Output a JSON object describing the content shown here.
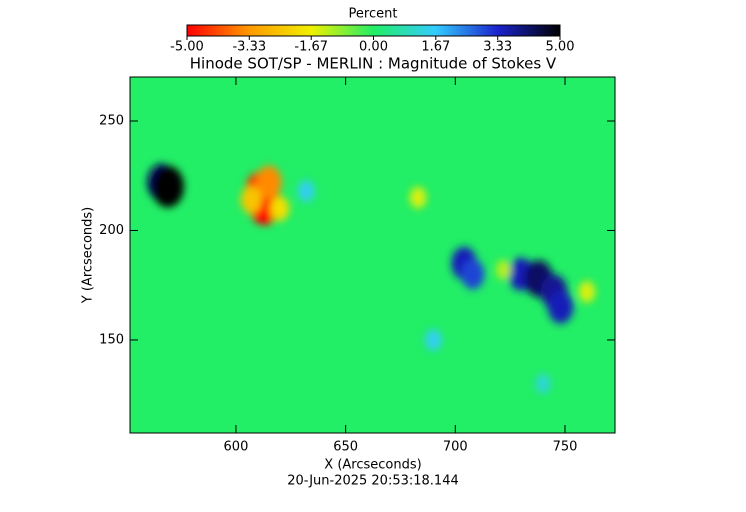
{
  "chart_data": {
    "type": "image",
    "title": "Hinode SOT/SP - MERLIN : Magnitude of Stokes V",
    "x_label": "X (Arcseconds)",
    "y_label": "Y (Arcseconds)",
    "footer": "20-Jun-2025 20:53:18.144",
    "colorbar_label": "Percent",
    "colorbar_ticks": [
      {
        "value": -5,
        "label": "-5.00"
      },
      {
        "value": -3.33,
        "label": "-3.33"
      },
      {
        "value": -1.67,
        "label": "-1.67"
      },
      {
        "value": 0,
        "label": "0.00"
      },
      {
        "value": 1.67,
        "label": "1.67"
      },
      {
        "value": 3.33,
        "label": "3.33"
      },
      {
        "value": 5,
        "label": "5.00"
      }
    ],
    "colorbar_lim": [
      -5,
      5
    ],
    "colormap": [
      "#ff0000",
      "#ff9900",
      "#f0f000",
      "#22ee66",
      "#33ccff",
      "#1a22cc",
      "#000000"
    ],
    "xlim": [
      551.7,
      772.8
    ],
    "ylim": [
      107.5,
      270.1
    ],
    "xticks": [
      600,
      650,
      700,
      750
    ],
    "yticks": [
      150,
      200,
      250
    ],
    "spots": {
      "x": [
        566,
        569,
        611,
        613,
        615,
        620,
        607,
        632,
        704,
        708,
        730,
        738,
        745,
        748,
        683,
        760,
        722,
        690,
        740
      ],
      "y": [
        222,
        220,
        218,
        212,
        222,
        210,
        214,
        218,
        185,
        180,
        180,
        178,
        172,
        165,
        215,
        172,
        182,
        150,
        130
      ],
      "values": [
        4.2,
        5,
        -4.5,
        -5,
        -3.5,
        -2,
        -2.5,
        1.5,
        3.5,
        3,
        3.5,
        4.2,
        3.8,
        3.5,
        -1.5,
        -1.5,
        -1.2,
        1.5,
        1.2
      ]
    }
  }
}
